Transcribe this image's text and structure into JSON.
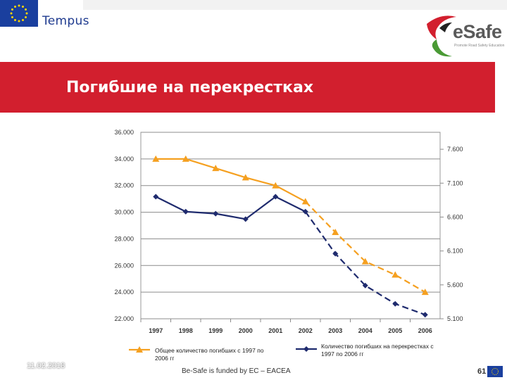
{
  "header": {
    "tempus_label": "Tempus",
    "esafe_label": "eSafe",
    "esafe_sub": "Promote Road Safety Education"
  },
  "slide": {
    "title": "Погибшие на перекрестках",
    "date": "11.02.2018",
    "footer": "Be-Safe is funded by EC – EACEA",
    "page": "61"
  },
  "colors": {
    "title_bar": "#d21f2e",
    "series_total": "#f5a020",
    "series_intersections": "#1f2b6e"
  },
  "chart_data": {
    "type": "line",
    "x": [
      "1997",
      "1998",
      "1999",
      "2000",
      "2001",
      "2002",
      "2003",
      "2004",
      "2005",
      "2006"
    ],
    "y_left_ticks": [
      "36.000",
      "34.000",
      "32.000",
      "30.000",
      "28.000",
      "26.000",
      "24.000",
      "22.000"
    ],
    "y_left_range": [
      22000,
      36000
    ],
    "y_right_ticks": [
      "7.600",
      "7.100",
      "6.600",
      "6.100",
      "5.600",
      "5.100"
    ],
    "y_right_range": [
      5100,
      7850
    ],
    "grid": true,
    "legend_position": "bottom",
    "series": [
      {
        "name": "Общее количество погибших с 1997 по 2006 гг",
        "axis": "left",
        "color": "#f5a020",
        "marker": "triangle",
        "values": [
          34000,
          34000,
          33300,
          32600,
          32000,
          30800,
          28500,
          26300,
          25300,
          24000
        ],
        "dashed_from_index": 5
      },
      {
        "name": "Количество погибших на перекрестках с 1997 по 2006 гг",
        "axis": "right",
        "color": "#1f2b6e",
        "marker": "diamond",
        "values": [
          6900,
          6680,
          6650,
          6570,
          6900,
          6680,
          6060,
          5590,
          5320,
          5160
        ],
        "dashed_from_index": 5
      }
    ]
  }
}
